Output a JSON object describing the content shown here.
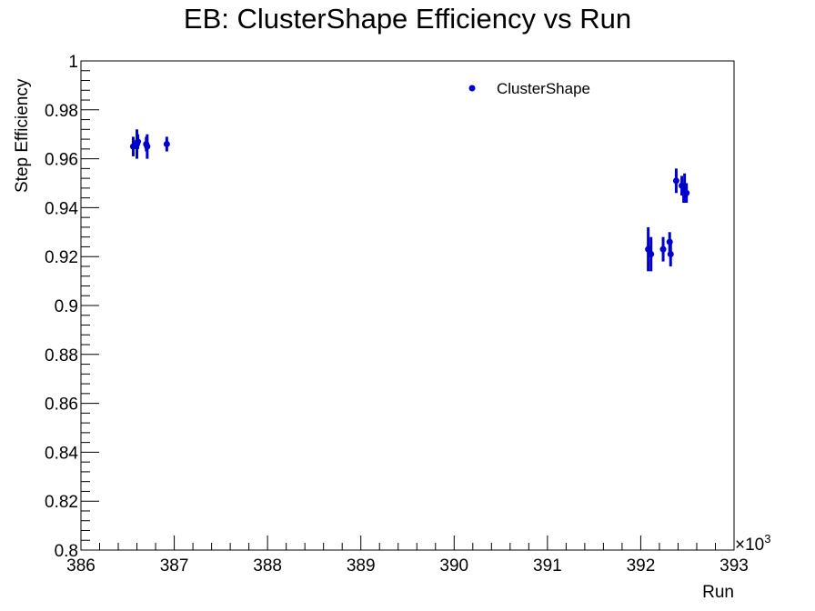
{
  "chart_data": {
    "type": "scatter",
    "title": "EB: ClusterShape Efficiency vs Run",
    "xlabel": "Run",
    "ylabel": "Step Efficiency",
    "x_multiplier": "×10",
    "x_multiplier_exp": "3",
    "xlim": [
      386,
      393
    ],
    "ylim": [
      0.8,
      1.0
    ],
    "x_ticks": [
      386,
      387,
      388,
      389,
      390,
      391,
      392,
      393
    ],
    "x_tick_labels": [
      "386",
      "387",
      "388",
      "389",
      "390",
      "391",
      "392",
      "393"
    ],
    "y_ticks": [
      0.8,
      0.82,
      0.84,
      0.86,
      0.88,
      0.9,
      0.92,
      0.94,
      0.96,
      0.98,
      1.0
    ],
    "y_tick_labels": [
      "0.8",
      "0.82",
      "0.84",
      "0.86",
      "0.88",
      "0.9",
      "0.92",
      "0.94",
      "0.96",
      "0.98",
      "1"
    ],
    "grid": false,
    "legend_position": "top-right",
    "series": [
      {
        "name": "ClusterShape",
        "color": "#0000cc",
        "points": [
          {
            "x": 386.56,
            "y": 0.965,
            "err": 0.004
          },
          {
            "x": 386.6,
            "y": 0.966,
            "err": 0.006
          },
          {
            "x": 386.61,
            "y": 0.967,
            "err": 0.003
          },
          {
            "x": 386.7,
            "y": 0.966,
            "err": 0.003
          },
          {
            "x": 386.71,
            "y": 0.965,
            "err": 0.005
          },
          {
            "x": 386.92,
            "y": 0.966,
            "err": 0.003
          },
          {
            "x": 392.08,
            "y": 0.923,
            "err": 0.009
          },
          {
            "x": 392.11,
            "y": 0.921,
            "err": 0.007
          },
          {
            "x": 392.24,
            "y": 0.923,
            "err": 0.005
          },
          {
            "x": 392.31,
            "y": 0.926,
            "err": 0.004
          },
          {
            "x": 392.32,
            "y": 0.921,
            "err": 0.005
          },
          {
            "x": 392.38,
            "y": 0.951,
            "err": 0.005
          },
          {
            "x": 392.44,
            "y": 0.949,
            "err": 0.004
          },
          {
            "x": 392.46,
            "y": 0.946,
            "err": 0.004
          },
          {
            "x": 392.47,
            "y": 0.948,
            "err": 0.006
          },
          {
            "x": 392.49,
            "y": 0.946,
            "err": 0.004
          }
        ]
      }
    ]
  }
}
